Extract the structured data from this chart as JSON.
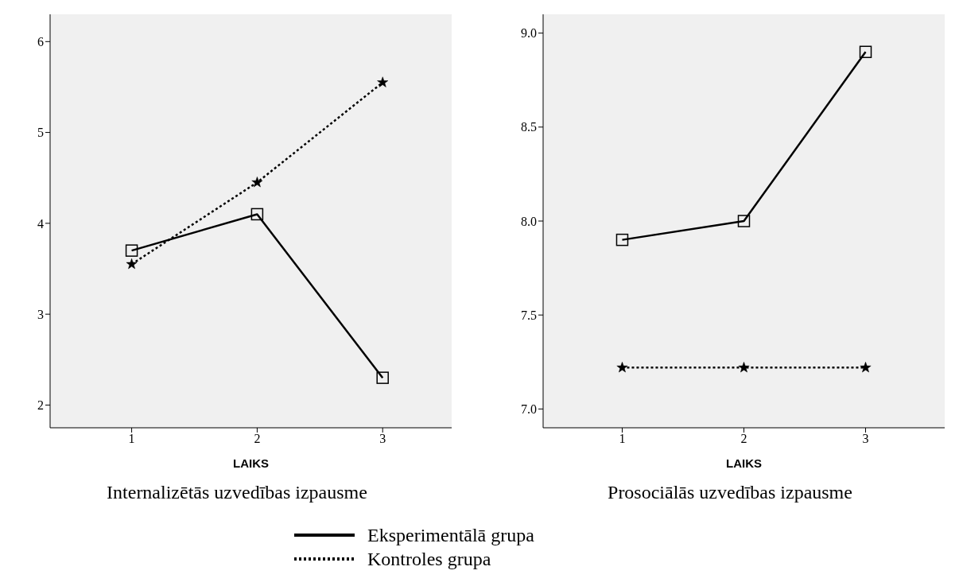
{
  "chart_data": [
    {
      "type": "line",
      "title": "Internalizētās uzvedības izpausme",
      "xlabel": "LAIKS",
      "x": [
        1,
        2,
        3
      ],
      "xlim": [
        0.35,
        3.55
      ],
      "xticks": [
        1,
        2,
        3
      ],
      "ylim": [
        1.75,
        6.3
      ],
      "yticks": [
        2,
        3,
        4,
        5,
        6
      ],
      "legend": "bottom",
      "series": [
        {
          "name": "Eksperimentālā grupa",
          "color": "#000000",
          "values": [
            3.7,
            4.1,
            2.3
          ],
          "marker": "square",
          "line_style": "solid"
        },
        {
          "name": "Kontroles grupa",
          "color": "#000000",
          "values": [
            3.55,
            4.45,
            5.55
          ],
          "marker": "star",
          "line_style": "dotted"
        }
      ]
    },
    {
      "type": "line",
      "title": "Prosociālās uzvedības izpausme",
      "xlabel": "LAIKS",
      "x": [
        1,
        2,
        3
      ],
      "xlim": [
        0.35,
        3.65
      ],
      "xticks": [
        1,
        2,
        3
      ],
      "ylim": [
        6.9,
        9.1
      ],
      "yticks": [
        {
          "value": 7,
          "label": "7.0"
        },
        7.5,
        {
          "value": 8,
          "label": "8.0"
        },
        8.5,
        {
          "value": 9,
          "label": "9.0"
        }
      ],
      "series": [
        {
          "color": "#000000",
          "values": [
            7.9,
            8.0,
            8.9
          ],
          "marker": "square",
          "line_style": "solid"
        },
        {
          "color": "#000000",
          "values": [
            7.22,
            7.22,
            7.22
          ],
          "marker": "star",
          "line_style": "dotted"
        }
      ]
    }
  ]
}
